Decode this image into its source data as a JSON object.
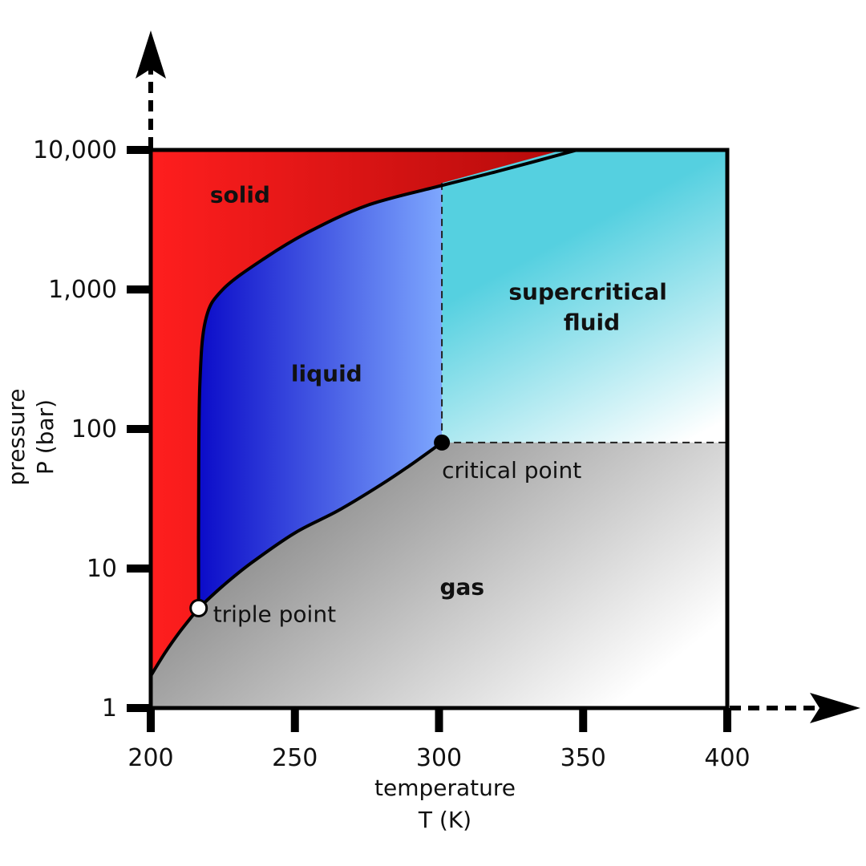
{
  "chart_data": {
    "type": "area",
    "title": "",
    "xlabel": "temperature",
    "xunit": "T (K)",
    "ylabel": "pressure",
    "yunit": "P (bar)",
    "x_scale": "linear",
    "y_scale": "log",
    "xlim": [
      200,
      400
    ],
    "ylim": [
      1,
      10000
    ],
    "x_ticks": [
      {
        "value": 200,
        "label": "200"
      },
      {
        "value": 250,
        "label": "250"
      },
      {
        "value": 300,
        "label": "300"
      },
      {
        "value": 350,
        "label": "350"
      },
      {
        "value": 400,
        "label": "400"
      }
    ],
    "y_ticks": [
      {
        "value": 1,
        "label": "1"
      },
      {
        "value": 10,
        "label": "10"
      },
      {
        "value": 100,
        "label": "100"
      },
      {
        "value": 1000,
        "label": "1,000"
      },
      {
        "value": 10000,
        "label": "10,000"
      }
    ],
    "grid": false,
    "regions": [
      {
        "label": "solid",
        "label_at": [
          231,
          4200
        ],
        "colors": [
          "#ff1e1e",
          "#b20a0a"
        ]
      },
      {
        "label": "liquid",
        "label_at": [
          261,
          220
        ],
        "colors": [
          "#0a0ac8",
          "#80aaff"
        ]
      },
      {
        "label": "supercritical fluid",
        "label_lines": [
          "supercritical",
          "fluid"
        ],
        "label_at": [
          353,
          850
        ],
        "colors": [
          "#55d0e0",
          "#ffffff"
        ]
      },
      {
        "label": "gas",
        "label_at": [
          308,
          6.5
        ],
        "colors": [
          "#808080",
          "#ffffff"
        ]
      }
    ],
    "curves": {
      "sublimation": [
        [
          200,
          1.7
        ],
        [
          205,
          2.5
        ],
        [
          210,
          3.5
        ],
        [
          216.6,
          5.2
        ]
      ],
      "vaporization": [
        [
          216.6,
          5.2
        ],
        [
          225,
          7.5
        ],
        [
          235,
          11
        ],
        [
          250,
          18
        ],
        [
          265,
          26
        ],
        [
          280,
          40
        ],
        [
          290,
          55
        ],
        [
          301,
          80
        ]
      ],
      "melting": [
        [
          216.6,
          5.2
        ],
        [
          216.6,
          30
        ],
        [
          217,
          200
        ],
        [
          219,
          600
        ],
        [
          225,
          1000
        ],
        [
          240,
          1700
        ],
        [
          255,
          2600
        ],
        [
          275,
          4000
        ],
        [
          300,
          5500
        ],
        [
          320,
          7000
        ],
        [
          348,
          10000
        ]
      ],
      "critical_isotherm": [
        [
          301,
          80
        ],
        [
          301,
          5800
        ]
      ],
      "critical_isobar": [
        [
          301,
          80
        ],
        [
          400,
          80
        ]
      ]
    },
    "points": [
      {
        "name": "triple point",
        "x": 216.6,
        "y": 5.2,
        "style": "open"
      },
      {
        "name": "critical point",
        "x": 301,
        "y": 80,
        "style": "filled"
      }
    ]
  }
}
